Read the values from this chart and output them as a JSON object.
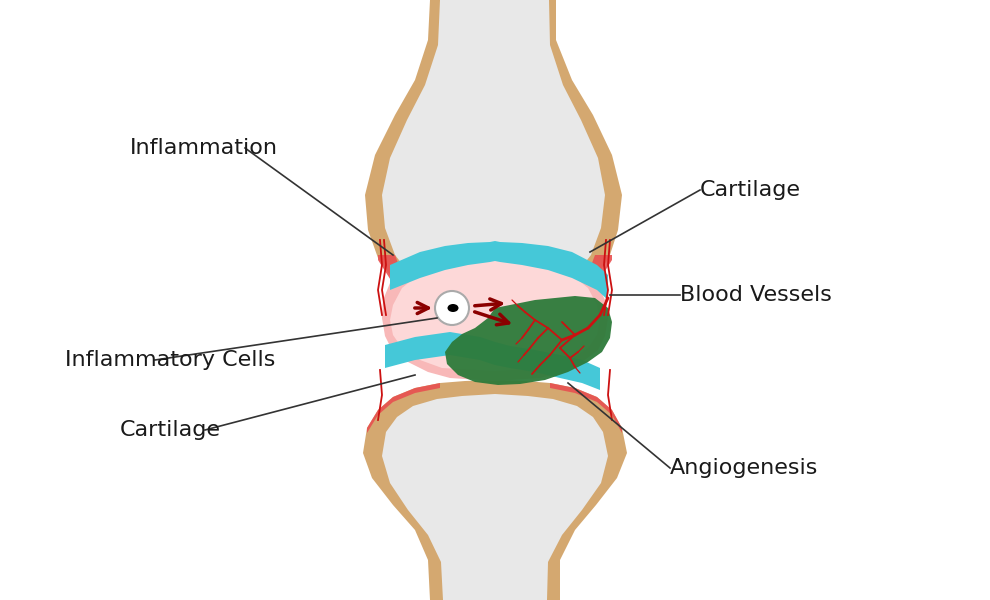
{
  "bg_color": "#ffffff",
  "bone_color": "#e8e8e8",
  "bone_shell_color": "#c8a060",
  "bone_shell_fill": "#d4a870",
  "red_lining": "#e85050",
  "cartilage_blue": "#45c8d8",
  "pink_joint": "#f8b8b8",
  "pink_inner": "#fdd8d8",
  "green_pannus": "#2d7a3a",
  "red_vessel": "#cc1111",
  "arrow_color": "#8b0000",
  "ann_color": "#1a1a1a",
  "label_fontsize": 16,
  "labels": {
    "inflammation": "Inflammation",
    "cartilage_right": "Cartilage",
    "blood_vessels": "Blood Vessels",
    "inflammatory_cells": "Inflammatory Cells",
    "cartilage_left": "Cartilage",
    "angiogenesis": "Angiogenesis"
  }
}
